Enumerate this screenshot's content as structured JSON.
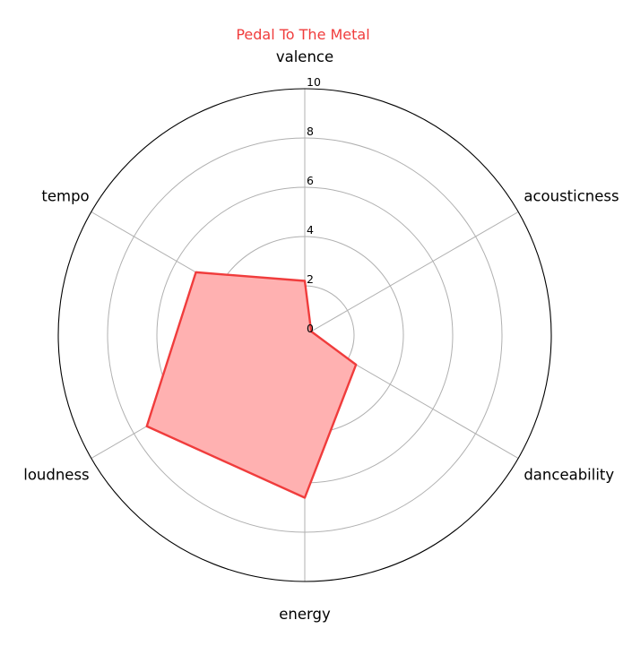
{
  "chart_data": {
    "type": "radar",
    "title": "Pedal To The Metal",
    "axes": [
      "valence",
      "acousticness",
      "danceability",
      "energy",
      "loudness",
      "tempo"
    ],
    "series": [
      {
        "values": [
          2.2,
          0.3,
          2.4,
          6.6,
          7.4,
          5.1
        ]
      }
    ],
    "rlim": [
      0,
      10
    ],
    "rticks": [
      0,
      2,
      4,
      6,
      8,
      10
    ],
    "grid": true,
    "colors": {
      "series": "#f03c3c",
      "fill": "#ffb1b1",
      "grid": "#b0b0b0",
      "title": "#f03c3c",
      "frame": "#000000"
    }
  }
}
